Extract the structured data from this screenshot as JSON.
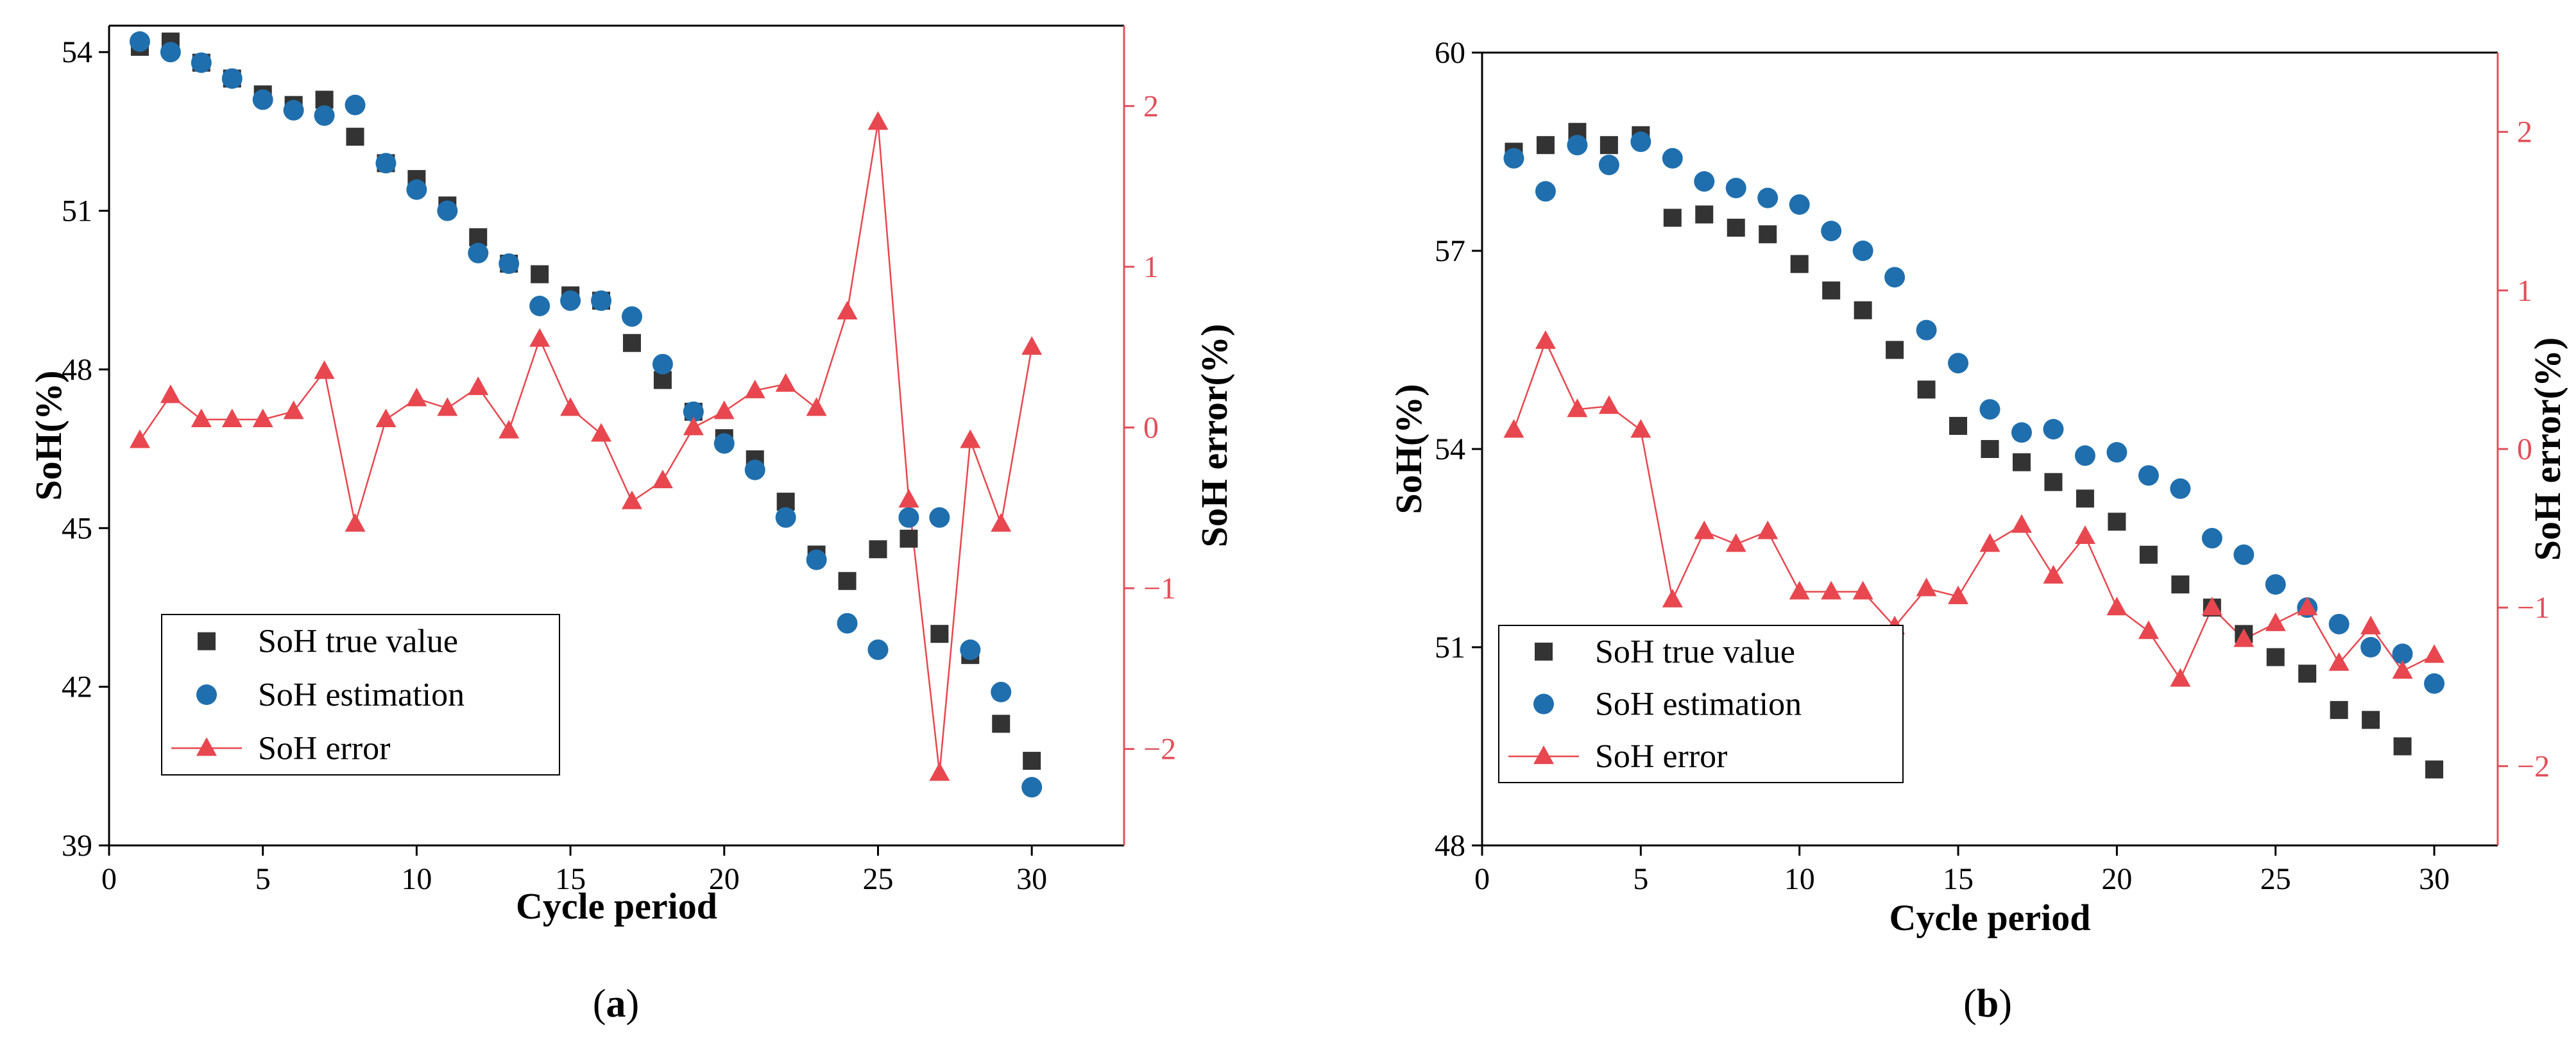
{
  "figure": {
    "panels": [
      "(a)",
      "(b)"
    ]
  },
  "colors": {
    "true_value": "#333333",
    "estimation": "#1f6fae",
    "error": "#e8474f",
    "right_axis": "#e0505a"
  },
  "chart_data": [
    {
      "id": "a",
      "type": "scatter",
      "panel_label": {
        "open": "(",
        "letter": "a",
        "close": ")"
      },
      "xlabel": "Cycle period",
      "ylabel": "SoH(%)",
      "y2label": "SoH error(%)",
      "xlim": [
        0,
        33
      ],
      "ylim": [
        39,
        54.5
      ],
      "y2lim": [
        -2.6,
        2.5
      ],
      "xticks": [
        0,
        5,
        10,
        15,
        20,
        25,
        30
      ],
      "yticks": [
        39,
        42,
        45,
        48,
        51,
        54
      ],
      "y2ticks": [
        -2,
        -1,
        0,
        1,
        2
      ],
      "x": [
        1,
        2,
        3,
        4,
        5,
        6,
        7,
        8,
        9,
        10,
        11,
        12,
        13,
        14,
        15,
        16,
        17,
        18,
        19,
        20,
        21,
        22,
        23,
        24,
        25,
        26,
        27,
        28,
        29,
        30
      ],
      "series": [
        {
          "name": "SoH true value",
          "marker": "square",
          "axis": "left",
          "values": [
            54.1,
            54.2,
            53.8,
            53.5,
            53.2,
            53.0,
            53.1,
            52.4,
            51.9,
            51.6,
            51.1,
            50.5,
            50.0,
            49.8,
            49.4,
            49.3,
            48.5,
            47.8,
            47.2,
            46.7,
            46.3,
            45.5,
            44.5,
            44.0,
            44.6,
            44.8,
            43.0,
            42.6,
            41.3,
            40.6
          ]
        },
        {
          "name": "SoH estimation",
          "marker": "circle",
          "axis": "left",
          "values": [
            54.2,
            54.0,
            53.8,
            53.5,
            53.1,
            52.9,
            52.8,
            53.0,
            51.9,
            51.4,
            51.0,
            50.2,
            50.0,
            49.2,
            49.3,
            49.3,
            49.0,
            48.1,
            47.2,
            46.6,
            46.1,
            45.2,
            44.4,
            43.2,
            42.7,
            45.2,
            45.2,
            42.7,
            41.9,
            40.1
          ]
        },
        {
          "name": "SoH error",
          "marker": "triangle-line",
          "axis": "right",
          "values": [
            -0.08,
            0.2,
            0.05,
            0.05,
            0.05,
            0.1,
            0.35,
            -0.6,
            0.05,
            0.18,
            0.12,
            0.25,
            -0.02,
            0.55,
            0.12,
            -0.04,
            -0.46,
            -0.33,
            0.0,
            0.1,
            0.23,
            0.27,
            0.12,
            0.72,
            1.9,
            -0.45,
            -2.15,
            -0.08,
            -0.6,
            0.5
          ]
        }
      ]
    },
    {
      "id": "b",
      "type": "scatter",
      "panel_label": {
        "open": "(",
        "letter": "b",
        "close": ")"
      },
      "xlabel": "Cycle period",
      "ylabel": "SoH(%)",
      "y2label": "SoH error(%)",
      "xlim": [
        0,
        32
      ],
      "ylim": [
        48,
        60
      ],
      "y2lim": [
        -2.5,
        2.5
      ],
      "xticks": [
        0,
        5,
        10,
        15,
        20,
        25,
        30
      ],
      "yticks": [
        48,
        51,
        54,
        57,
        60
      ],
      "y2ticks": [
        -2,
        -1,
        0,
        1,
        2
      ],
      "x": [
        1,
        2,
        3,
        4,
        5,
        6,
        7,
        8,
        9,
        10,
        11,
        12,
        13,
        14,
        15,
        16,
        17,
        18,
        19,
        20,
        21,
        22,
        23,
        24,
        25,
        26,
        27,
        28,
        29,
        30
      ],
      "series": [
        {
          "name": "SoH true value",
          "marker": "square",
          "axis": "left",
          "values": [
            58.5,
            58.6,
            58.8,
            58.6,
            58.75,
            57.5,
            57.55,
            57.35,
            57.25,
            56.8,
            56.4,
            56.1,
            55.5,
            54.9,
            54.35,
            54.0,
            53.8,
            53.5,
            53.25,
            52.9,
            52.4,
            51.95,
            51.6,
            51.2,
            50.85,
            50.6,
            50.05,
            49.9,
            49.5,
            49.15
          ]
        },
        {
          "name": "SoH estimation",
          "marker": "circle",
          "axis": "left",
          "values": [
            58.4,
            57.9,
            58.6,
            58.3,
            58.65,
            58.4,
            58.05,
            57.95,
            57.8,
            57.7,
            57.3,
            57.0,
            56.6,
            55.8,
            55.3,
            54.6,
            54.25,
            54.3,
            53.9,
            53.95,
            53.6,
            53.4,
            52.65,
            52.4,
            51.95,
            51.6,
            51.35,
            51.0,
            50.9,
            50.45
          ]
        },
        {
          "name": "SoH error",
          "marker": "triangle-line",
          "axis": "right",
          "values": [
            0.12,
            0.68,
            0.25,
            0.27,
            0.12,
            -0.95,
            -0.52,
            -0.6,
            -0.52,
            -0.9,
            -0.9,
            -0.9,
            -1.12,
            -0.88,
            -0.93,
            -0.6,
            -0.48,
            -0.8,
            -0.55,
            -1.0,
            -1.15,
            -1.45,
            -1.0,
            -1.2,
            -1.1,
            -1.0,
            -1.35,
            -1.12,
            -1.4,
            -1.3
          ]
        }
      ]
    }
  ]
}
